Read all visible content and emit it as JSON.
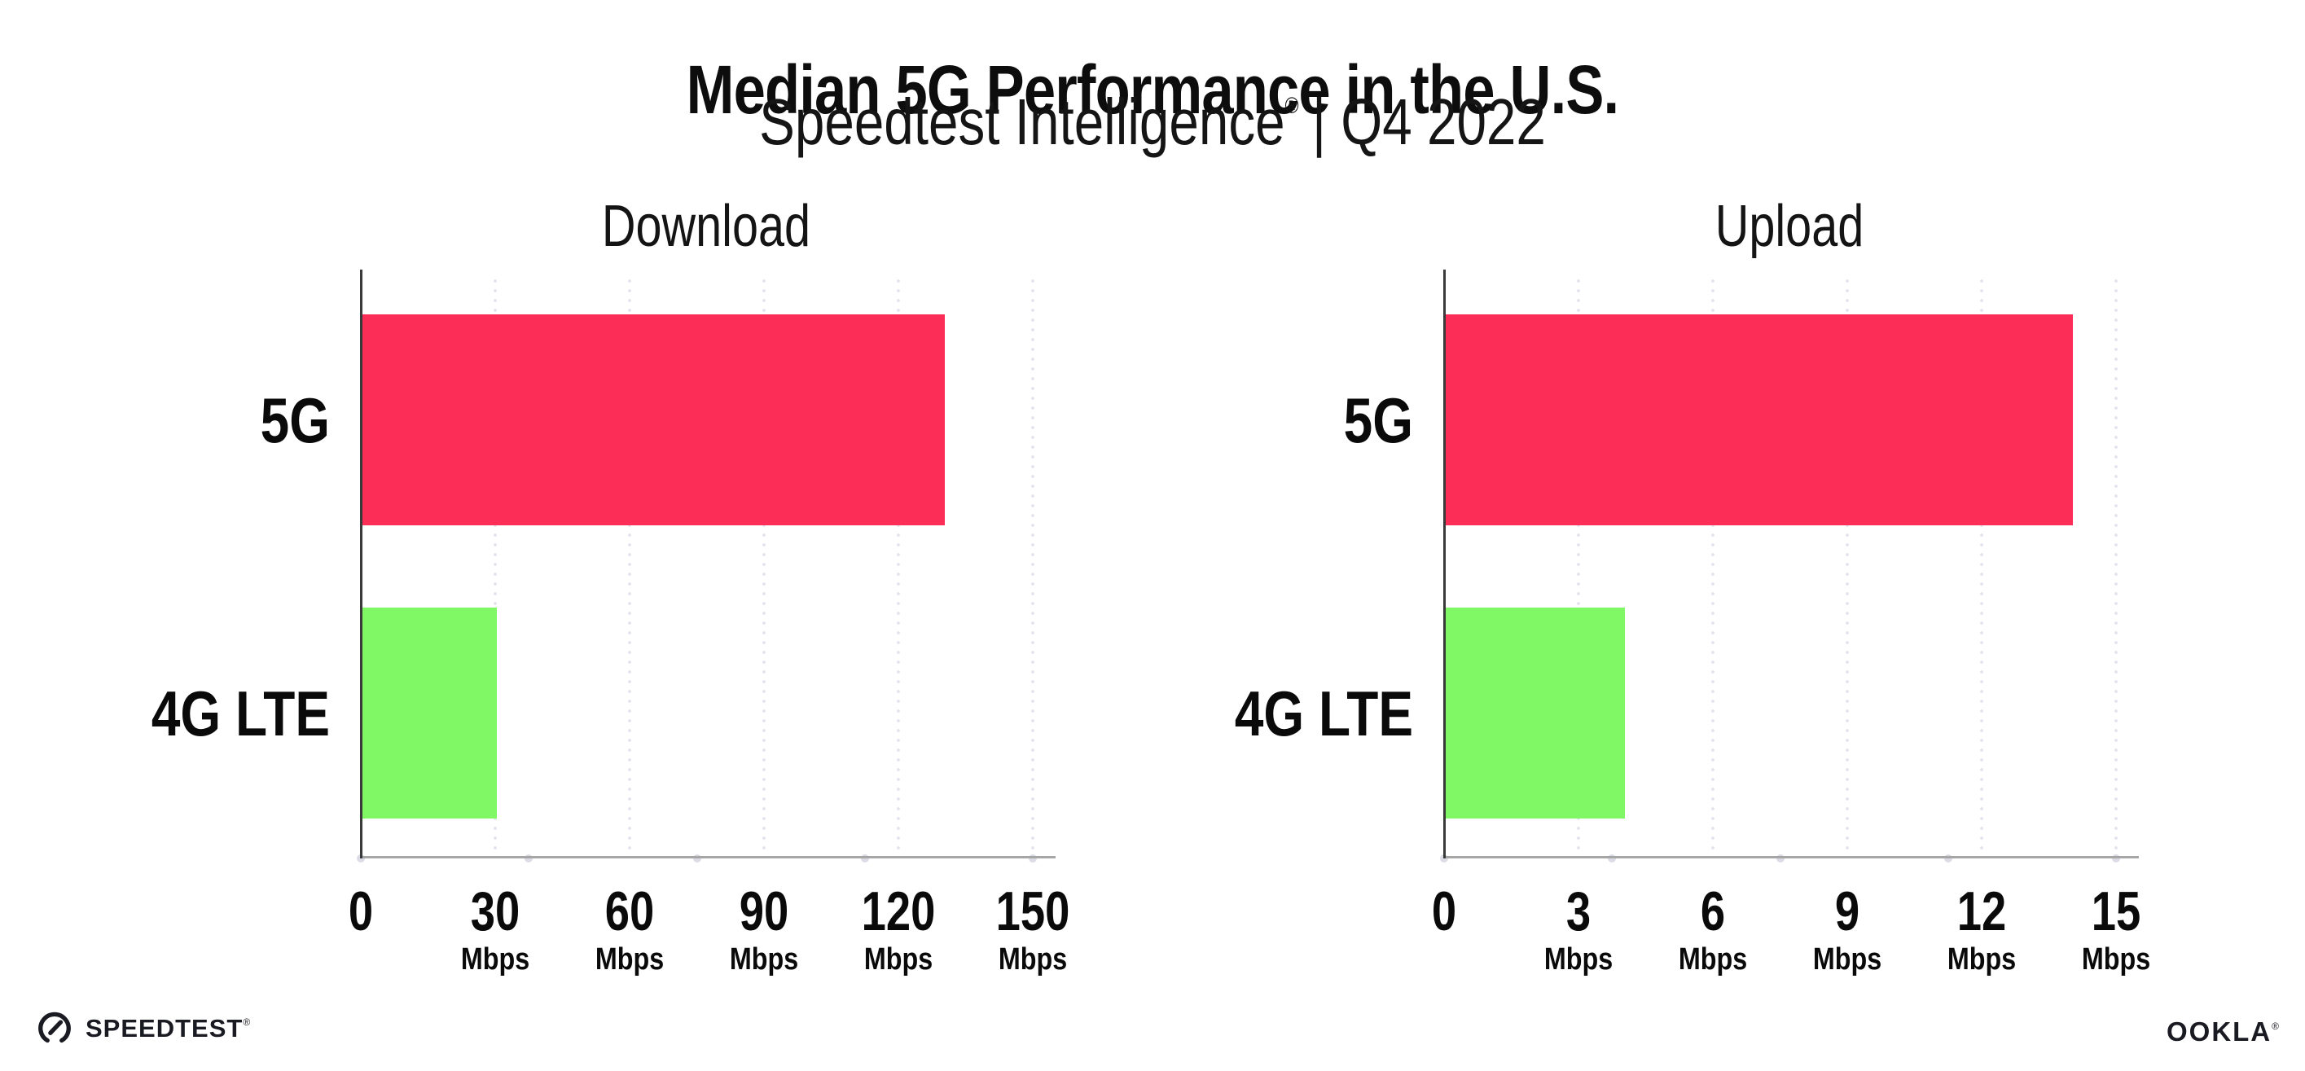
{
  "header": {
    "title": "Median 5G Performance in the U.S.",
    "subtitle": {
      "brand": "Speedtest Intelligence",
      "reg": "®",
      "rest": "| Q4 2022"
    }
  },
  "chart_data": [
    {
      "type": "bar",
      "orientation": "horizontal",
      "title": "Download",
      "categories": [
        "5G",
        "4G LTE"
      ],
      "values": [
        130,
        30
      ],
      "unit": "Mbps",
      "xlim": [
        0,
        150
      ],
      "xticks": [
        0,
        30,
        60,
        90,
        120,
        150
      ],
      "tick_unit_label": "Mbps",
      "bar_colors": [
        "#FC2D57",
        "#80F765"
      ],
      "grid": "dotted-vertical",
      "legend_position": "none"
    },
    {
      "type": "bar",
      "orientation": "horizontal",
      "title": "Upload",
      "categories": [
        "5G",
        "4G LTE"
      ],
      "values": [
        14,
        4
      ],
      "unit": "Mbps",
      "xlim": [
        0,
        15
      ],
      "xticks": [
        0,
        3,
        6,
        9,
        12,
        15
      ],
      "tick_unit_label": "Mbps",
      "bar_colors": [
        "#FC2D57",
        "#80F765"
      ],
      "grid": "dotted-vertical",
      "legend_position": "none"
    }
  ],
  "footer": {
    "speedtest": {
      "label": "SPEEDTEST",
      "reg": "®"
    },
    "ookla": {
      "label": "OOKLA",
      "reg": "®"
    }
  },
  "colors": {
    "bar_5g": "#FC2D57",
    "bar_4g_lte": "#80F765",
    "grid_dots": "#E2E2EE",
    "x_axis_line": "#A6A6A6",
    "y_axis_line": "#3A3A3A",
    "text": "#0D0D0D"
  }
}
